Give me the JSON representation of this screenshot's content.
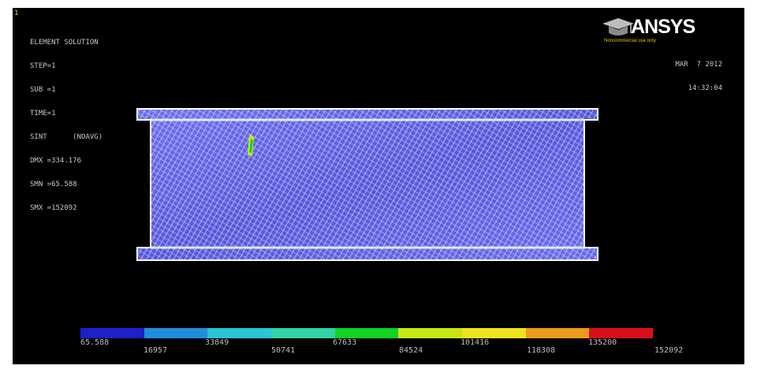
{
  "window_number": "1",
  "info_lines": [
    "ELEMENT SOLUTION",
    "STEP=1",
    "SUB =1",
    "TIME=1",
    "SINT      (NOAVG)",
    "DMX =334.176",
    "SMN =65.588",
    "SMX =152092"
  ],
  "logo": {
    "text": "ANSYS",
    "subtext": "Noncommercial use only"
  },
  "date": "MAR  7 2012",
  "time": "14:32:04",
  "legend": {
    "colors": [
      "#1c21c9",
      "#1e8fdd",
      "#29c4d6",
      "#2fd3a6",
      "#13d21f",
      "#c7e617",
      "#ede31e",
      "#ed9a1a",
      "#d8101a"
    ],
    "top_labels": [
      "65.588",
      "33849",
      "67633",
      "101416",
      "135200"
    ],
    "bottom_labels": [
      "16957",
      "50741",
      "84524",
      "118308",
      "152092"
    ]
  },
  "model_color": "#5f5ee0",
  "mesh_color": "#ffffff"
}
